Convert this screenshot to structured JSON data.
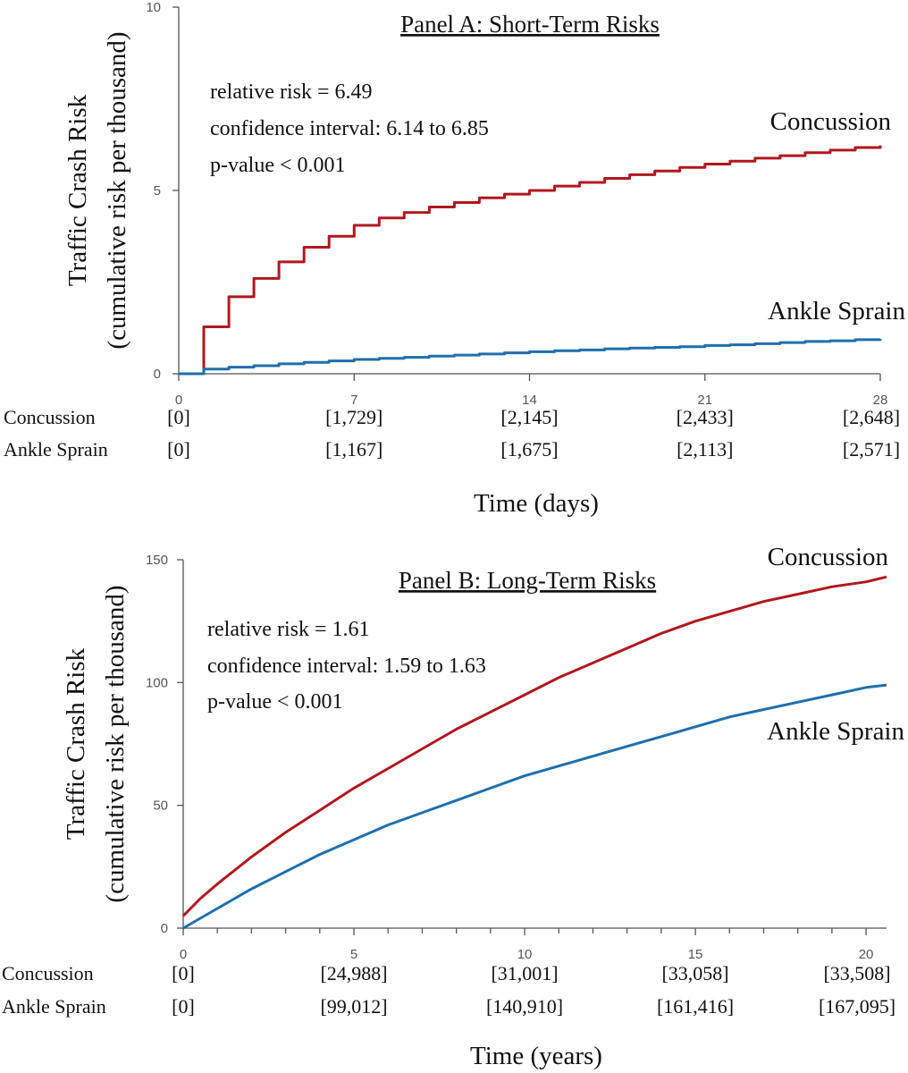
{
  "chart_data": [
    {
      "id": "panel-a",
      "type": "line",
      "title": "Panel A: Short-Term Risks",
      "ylabel": "Traffic Crash Risk",
      "ylabel2": "(cumulative risk per thousand)",
      "xlabel": "Time (days)",
      "xlim": [
        0,
        28
      ],
      "ylim": [
        0,
        10
      ],
      "xticks": [
        0,
        7,
        14,
        21,
        28
      ],
      "xtick_labels": [
        "0",
        "7",
        "14",
        "21",
        "28"
      ],
      "yticks": [
        0,
        5,
        10
      ],
      "ytick_labels": [
        "0",
        "5",
        "10"
      ],
      "stats": [
        "relative risk = 6.49",
        "confidence interval: 6.14 to 6.85",
        "p-value < 0.001"
      ],
      "step": true,
      "series": [
        {
          "name": "Concussion",
          "color": "#b0171f",
          "x": [
            0,
            1,
            1,
            2,
            3,
            4,
            5,
            6,
            7,
            8,
            9,
            10,
            11,
            12,
            13,
            14,
            15,
            16,
            17,
            18,
            19,
            20,
            21,
            22,
            23,
            24,
            25,
            26,
            27,
            28
          ],
          "y": [
            0,
            0,
            1.28,
            2.1,
            2.6,
            3.05,
            3.45,
            3.75,
            4.05,
            4.25,
            4.4,
            4.55,
            4.67,
            4.8,
            4.9,
            5.0,
            5.12,
            5.22,
            5.33,
            5.43,
            5.53,
            5.63,
            5.72,
            5.8,
            5.88,
            5.95,
            6.03,
            6.1,
            6.17,
            6.23
          ]
        },
        {
          "name": "Ankle Sprain",
          "color": "#1f6fad",
          "x": [
            0,
            1,
            1,
            2,
            3,
            4,
            5,
            6,
            7,
            8,
            9,
            10,
            11,
            12,
            13,
            14,
            15,
            16,
            17,
            18,
            19,
            20,
            21,
            22,
            23,
            24,
            25,
            26,
            27,
            28
          ],
          "y": [
            0,
            0,
            0.13,
            0.18,
            0.22,
            0.27,
            0.31,
            0.35,
            0.39,
            0.42,
            0.45,
            0.48,
            0.51,
            0.54,
            0.57,
            0.6,
            0.63,
            0.65,
            0.68,
            0.7,
            0.72,
            0.74,
            0.77,
            0.79,
            0.82,
            0.85,
            0.88,
            0.9,
            0.93,
            0.95
          ]
        }
      ],
      "at_risk": {
        "rows": [
          {
            "label": "Concussion",
            "values": [
              "[0]",
              "[1,729]",
              "[2,145]",
              "[2,433]",
              "[2,648]"
            ]
          },
          {
            "label": "Ankle Sprain",
            "values": [
              "[0]",
              "[1,167]",
              "[1,675]",
              "[2,113]",
              "[2,571]"
            ]
          }
        ]
      }
    },
    {
      "id": "panel-b",
      "type": "line",
      "title": "Panel B: Long-Term Risks",
      "ylabel": "Traffic Crash Risk",
      "ylabel2": "(cumulative risk per thousand)",
      "xlabel": "Time (years)",
      "xlim": [
        0,
        20.6
      ],
      "ylim": [
        0,
        150
      ],
      "xticks": [
        0,
        5,
        10,
        15,
        20
      ],
      "xtick_labels": [
        "0",
        "5",
        "10",
        "15",
        "20"
      ],
      "minor_xticks": [
        1,
        2,
        3,
        4,
        6,
        7,
        8,
        9,
        11,
        12,
        13,
        14,
        16,
        17,
        18,
        19
      ],
      "yticks": [
        0,
        50,
        100,
        150
      ],
      "ytick_labels": [
        "0",
        "50",
        "100",
        "150"
      ],
      "stats": [
        "relative risk = 1.61",
        "confidence interval: 1.59 to 1.63",
        "p-value < 0.001"
      ],
      "step": false,
      "series": [
        {
          "name": "Concussion",
          "color": "#b0171f",
          "x": [
            0,
            0.5,
            1,
            2,
            3,
            4,
            5,
            6,
            7,
            8,
            9,
            10,
            11,
            12,
            13,
            14,
            15,
            16,
            17,
            18,
            19,
            20,
            20.6
          ],
          "y": [
            5,
            12,
            18,
            29,
            39,
            48,
            57,
            65,
            73,
            81,
            88,
            95,
            102,
            108,
            114,
            120,
            125,
            129,
            133,
            136,
            139,
            141,
            143
          ]
        },
        {
          "name": "Ankle Sprain",
          "color": "#1f6fad",
          "x": [
            0,
            0.5,
            1,
            2,
            3,
            4,
            5,
            6,
            7,
            8,
            9,
            10,
            11,
            12,
            13,
            14,
            15,
            16,
            17,
            18,
            19,
            20,
            20.6
          ],
          "y": [
            0,
            4,
            8,
            16,
            23,
            30,
            36,
            42,
            47,
            52,
            57,
            62,
            66,
            70,
            74,
            78,
            82,
            86,
            89,
            92,
            95,
            98,
            99
          ]
        }
      ],
      "at_risk": {
        "rows": [
          {
            "label": "Concussion",
            "values": [
              "[0]",
              "[24,988]",
              "[31,001]",
              "[33,058]",
              "[33,508]"
            ]
          },
          {
            "label": "Ankle Sprain",
            "values": [
              "[0]",
              "[99,012]",
              "[140,910]",
              "[161,416]",
              "[167,095]"
            ]
          }
        ]
      }
    }
  ]
}
